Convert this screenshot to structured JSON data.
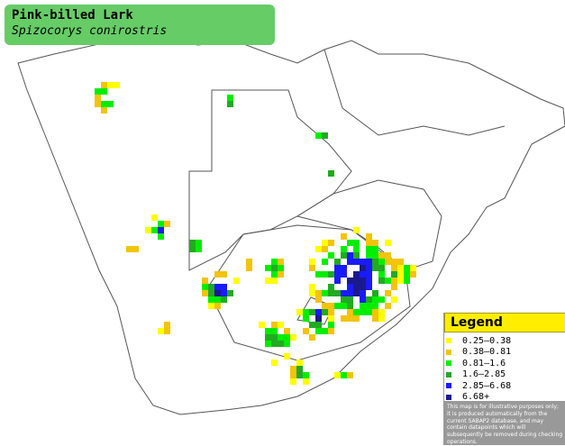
{
  "header": {
    "title": "Pink-billed Lark",
    "subtitle": "Spizocorys conirostris"
  },
  "legend": {
    "title": "Legend",
    "items": [
      {
        "label": "0.25–0.38",
        "color": "#ffff00"
      },
      {
        "label": "0.38–0.81",
        "color": "#f2c40c"
      },
      {
        "label": "0.81–1.6",
        "color": "#00ee00"
      },
      {
        "label": "1.6–2.85",
        "color": "#22aa22"
      },
      {
        "label": "2.85–6.68",
        "color": "#1a1aff"
      },
      {
        "label": "6.68+",
        "color": "#1a1a8c"
      }
    ],
    "note": "This map is for illustrative purposes only; it is produced automatically from the current SABAP2 database, and may contain datapoints which will subsequently be removed during checking operations."
  }
}
